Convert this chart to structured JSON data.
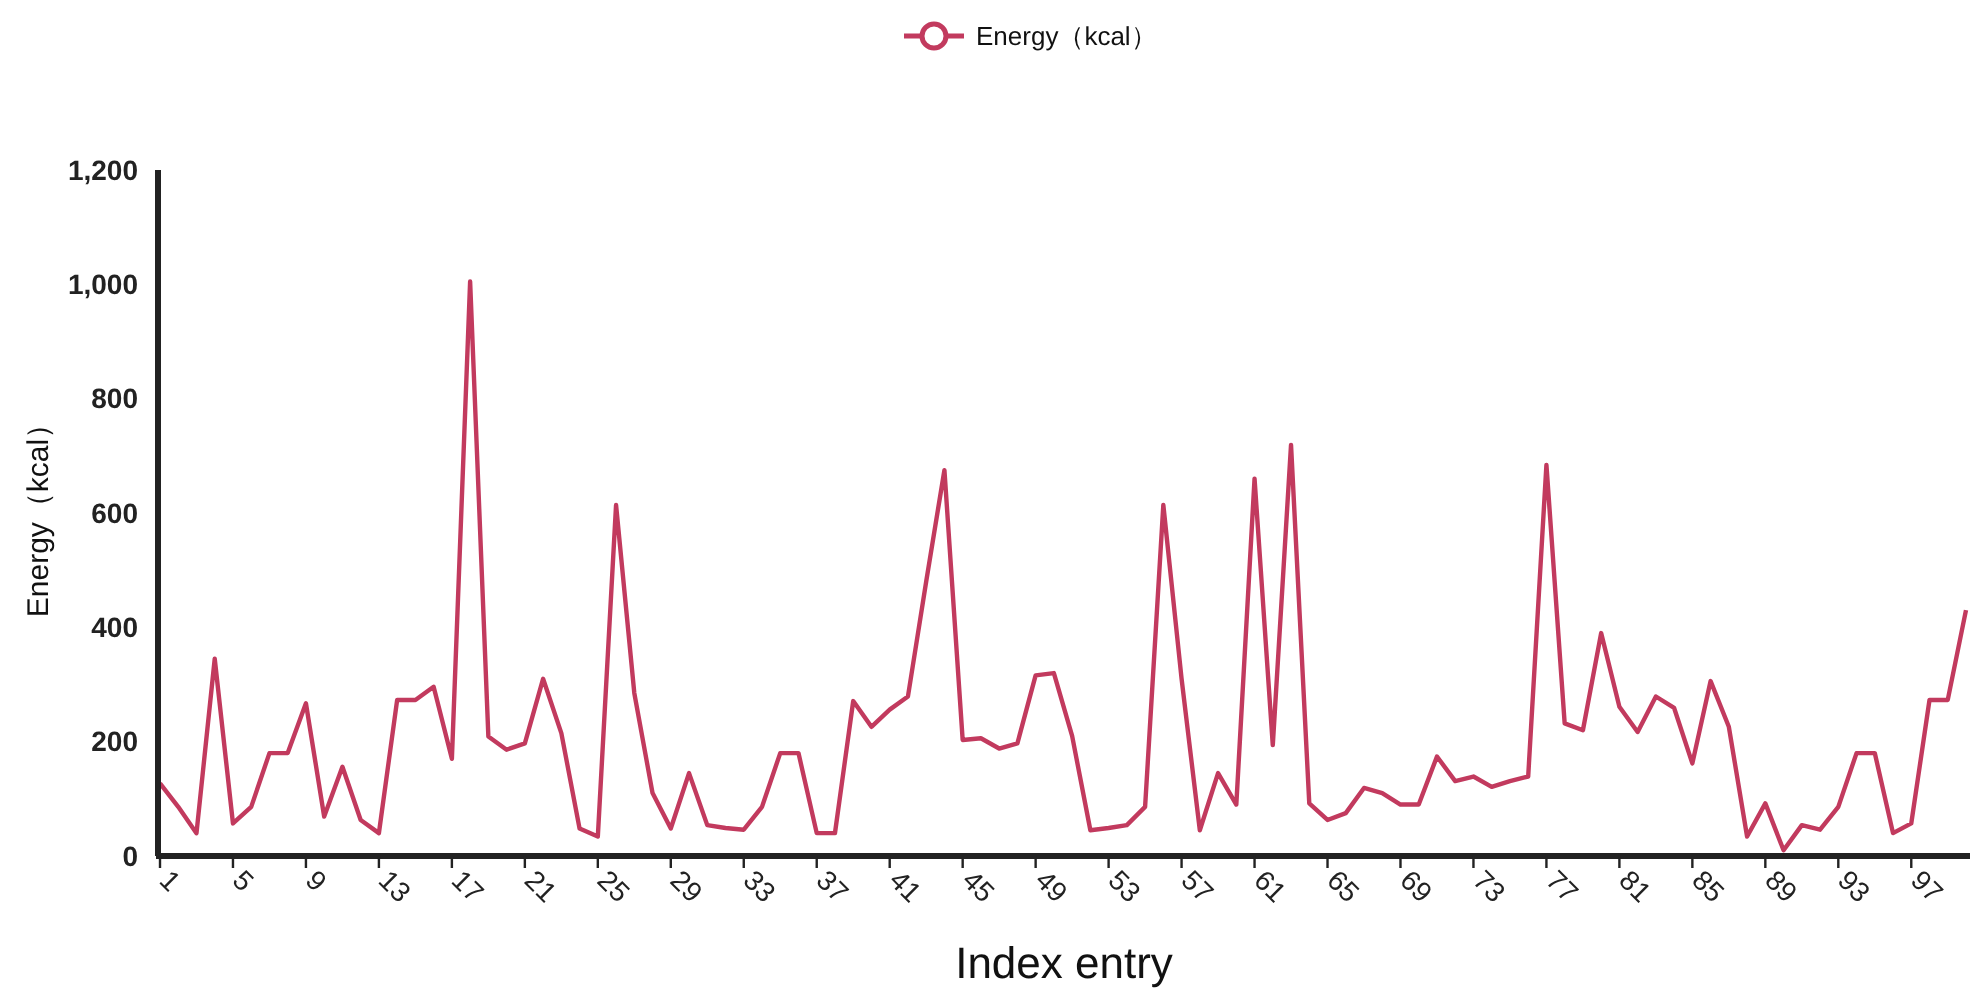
{
  "chart_data": {
    "type": "line",
    "xlabel": "Index entry",
    "ylabel": "Energy（kcal）",
    "categories": [
      "1",
      null,
      null,
      null,
      "5",
      null,
      null,
      null,
      "9",
      null,
      null,
      null,
      "13",
      null,
      null,
      null,
      "17",
      null,
      null,
      null,
      "21",
      null,
      null,
      null,
      "25",
      null,
      null,
      null,
      "29",
      null,
      null,
      null,
      "33",
      null,
      null,
      null,
      "37",
      null,
      null,
      null,
      "41",
      null,
      null,
      null,
      "45",
      null,
      null,
      null,
      "49",
      null,
      null,
      null,
      "53",
      null,
      null,
      null,
      "57",
      null,
      null,
      null,
      "61",
      null,
      null,
      null,
      "65",
      null,
      null,
      null,
      "69",
      null,
      null,
      null,
      "73",
      null,
      null,
      null,
      "77",
      null,
      null,
      null,
      "81",
      null,
      null,
      null,
      "85",
      null,
      null,
      null,
      "89",
      null,
      null,
      null,
      "93",
      null,
      null,
      null,
      "97",
      null,
      null,
      null
    ],
    "series": [
      {
        "name": "Energy（kcal）",
        "color": "#c23a5e",
        "values": [
          127,
          86,
          40,
          345,
          57,
          86,
          180,
          180,
          267,
          69,
          156,
          63,
          40,
          273,
          273,
          296,
          170,
          1005,
          209,
          186,
          197,
          310,
          215,
          48,
          34,
          614,
          285,
          110,
          48,
          145,
          54,
          49,
          46,
          86,
          180,
          180,
          40,
          40,
          271,
          226,
          256,
          279,
          480,
          675,
          203,
          206,
          188,
          197,
          316,
          320,
          210,
          45,
          49,
          54,
          86,
          614,
          310,
          45,
          145,
          90,
          660,
          194,
          719,
          92,
          63,
          75,
          119,
          110,
          90,
          90,
          174,
          131,
          139,
          121,
          131,
          139,
          684,
          232,
          220,
          390,
          261,
          217,
          279,
          259,
          162,
          306,
          226,
          34,
          92,
          10,
          54,
          46,
          86,
          180,
          180,
          40,
          57,
          273,
          273,
          430
        ]
      }
    ],
    "ylim": [
      0,
      1200
    ],
    "yticks": [
      0,
      {
        "value": 200,
        "label": "200"
      },
      {
        "value": 400,
        "label": "400"
      },
      {
        "value": 600,
        "label": "600"
      },
      {
        "value": 800,
        "label": "800"
      },
      {
        "value": 1000,
        "label": "1,000"
      },
      {
        "value": 1200,
        "label": "1,200"
      }
    ],
    "grid": false,
    "legend": "top",
    "marker": "none",
    "line_style": "solid"
  }
}
